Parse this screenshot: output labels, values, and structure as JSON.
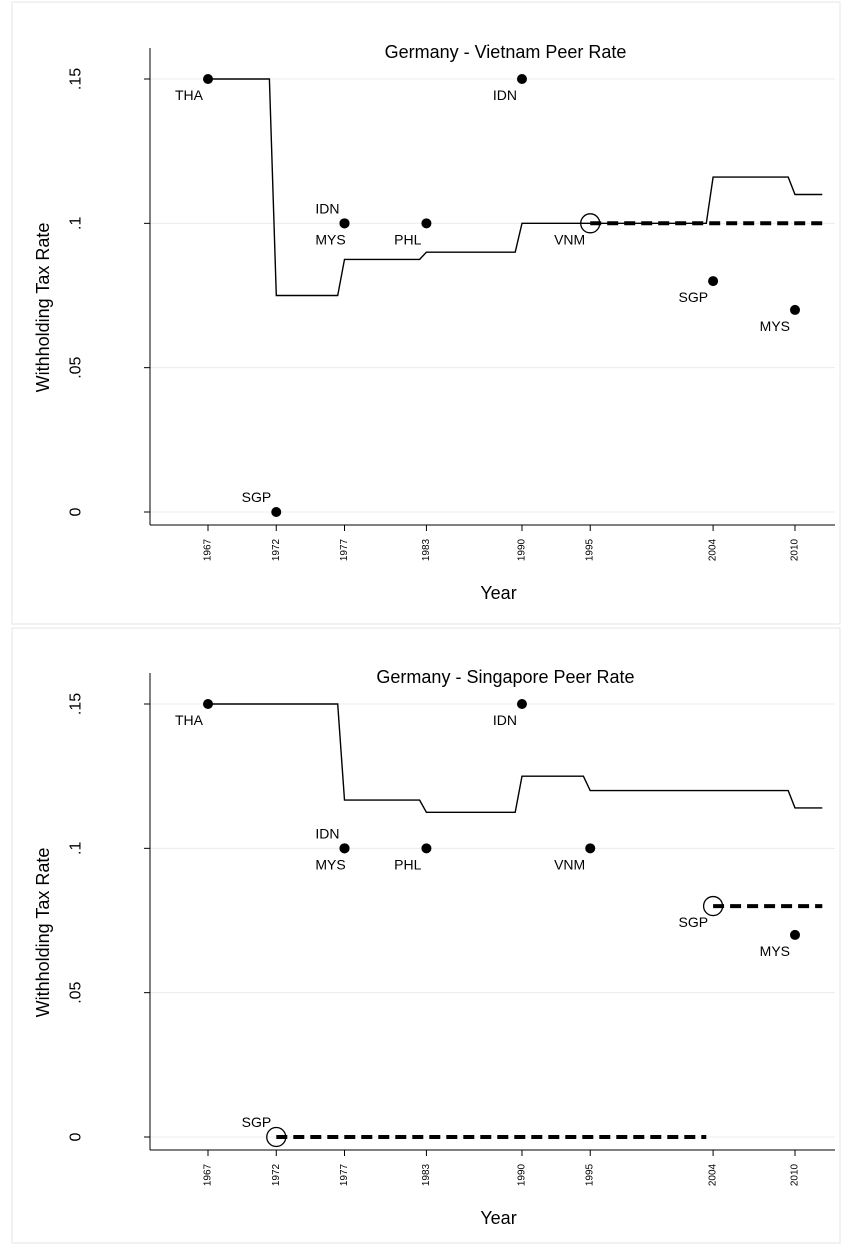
{
  "chart_data": [
    {
      "type": "line",
      "title": "Germany - Vietnam Peer Rate",
      "xlabel": "Year",
      "ylabel": "Withholding Tax Rate",
      "xlim": [
        1963,
        2012
      ],
      "ylim": [
        0,
        0.15
      ],
      "grid": true,
      "x_ticks": [
        "1967",
        "1972",
        "1977",
        "1983",
        "1990",
        "1995",
        "2004",
        "2010"
      ],
      "y_ticks": [
        ".15",
        ".1",
        ".05",
        "0"
      ],
      "y_tick_values": [
        0.15,
        0.1,
        0.05,
        0
      ],
      "peer_rate": {
        "x": [
          1967,
          1971.5,
          1972,
          1976.5,
          1977,
          1982.5,
          1983,
          1989.5,
          1990,
          1994.5,
          1995,
          2003.5,
          2004,
          2009.5,
          2010,
          2012
        ],
        "y": [
          0.15,
          0.15,
          0.075,
          0.075,
          0.0875,
          0.0875,
          0.09,
          0.09,
          0.1,
          0.1,
          0.1,
          0.1,
          0.116,
          0.116,
          0.11,
          0.11
        ]
      },
      "actual_rate": {
        "x": [
          1995,
          2012
        ],
        "y": [
          0.1,
          0.1
        ]
      },
      "hollow_markers": [
        {
          "x": 1995,
          "y": 0.1
        }
      ],
      "treaty_points": [
        {
          "label": "THA",
          "x": 1967,
          "y": 0.15,
          "pos": "below-left"
        },
        {
          "label": "SGP",
          "x": 1972,
          "y": 0.0,
          "pos": "above-left"
        },
        {
          "label": "IDN",
          "x": 1977,
          "y": 0.1,
          "pos": "above-left"
        },
        {
          "label": "MYS",
          "x": 1977,
          "y": 0.1,
          "pos": "below"
        },
        {
          "label": "PHL",
          "x": 1983,
          "y": 0.1,
          "pos": "below-left"
        },
        {
          "label": "IDN",
          "x": 1990,
          "y": 0.15,
          "pos": "below-left"
        },
        {
          "label": "VNM",
          "x": 1995,
          "y": 0.1,
          "pos": "below-left"
        },
        {
          "label": "SGP",
          "x": 2004,
          "y": 0.08,
          "pos": "below-left"
        },
        {
          "label": "MYS",
          "x": 2010,
          "y": 0.07,
          "pos": "below-left"
        }
      ]
    },
    {
      "type": "line",
      "title": "Germany - Singapore Peer Rate",
      "xlabel": "Year",
      "ylabel": "Withholding Tax Rate",
      "xlim": [
        1963,
        2012
      ],
      "ylim": [
        0,
        0.15
      ],
      "grid": true,
      "x_ticks": [
        "1967",
        "1972",
        "1977",
        "1983",
        "1990",
        "1995",
        "2004",
        "2010"
      ],
      "y_ticks": [
        ".15",
        ".1",
        ".05",
        "0"
      ],
      "y_tick_values": [
        0.15,
        0.1,
        0.05,
        0
      ],
      "peer_rate": {
        "x": [
          1967,
          1976.5,
          1977,
          1982.5,
          1983,
          1989.5,
          1990,
          1994.5,
          1995,
          2009.5,
          2010,
          2012
        ],
        "y": [
          0.15,
          0.15,
          0.1167,
          0.1167,
          0.1125,
          0.1125,
          0.125,
          0.125,
          0.12,
          0.12,
          0.114,
          0.114
        ]
      },
      "actual_rate": [
        {
          "x": [
            1972,
            2003.5
          ],
          "y": [
            0.0,
            0.0
          ]
        },
        {
          "x": [
            2004,
            2012
          ],
          "y": [
            0.08,
            0.08
          ]
        }
      ],
      "hollow_markers": [
        {
          "x": 1972,
          "y": 0.0
        },
        {
          "x": 2004,
          "y": 0.08
        }
      ],
      "treaty_points": [
        {
          "label": "THA",
          "x": 1967,
          "y": 0.15,
          "pos": "below-left"
        },
        {
          "label": "SGP",
          "x": 1972,
          "y": 0.0,
          "pos": "above-left"
        },
        {
          "label": "IDN",
          "x": 1977,
          "y": 0.1,
          "pos": "above-left"
        },
        {
          "label": "MYS",
          "x": 1977,
          "y": 0.1,
          "pos": "below"
        },
        {
          "label": "PHL",
          "x": 1983,
          "y": 0.1,
          "pos": "below-left"
        },
        {
          "label": "IDN",
          "x": 1990,
          "y": 0.15,
          "pos": "below-left"
        },
        {
          "label": "VNM",
          "x": 1995,
          "y": 0.1,
          "pos": "below-left"
        },
        {
          "label": "SGP",
          "x": 2004,
          "y": 0.08,
          "pos": "below-left"
        },
        {
          "label": "MYS",
          "x": 2010,
          "y": 0.07,
          "pos": "below-left"
        }
      ]
    }
  ]
}
